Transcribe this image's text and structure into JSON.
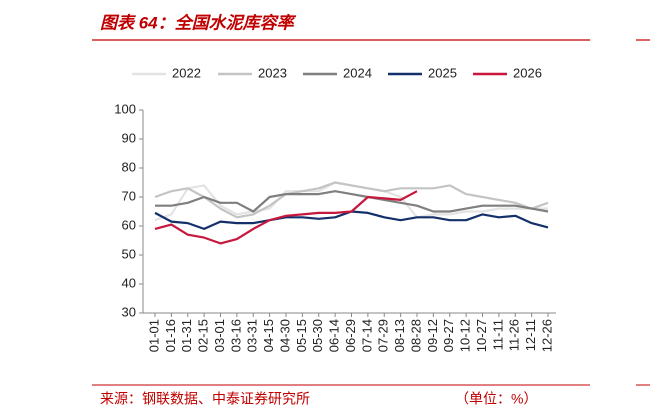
{
  "chart_data": {
    "type": "line",
    "title": "图表 64：全国水泥库容率",
    "source": "来源：钢联数据、中泰证券研究所",
    "unit": "（单位：%）",
    "categories": [
      "01-01",
      "01-16",
      "01-31",
      "02-15",
      "03-01",
      "03-16",
      "03-31",
      "04-15",
      "04-30",
      "05-15",
      "05-30",
      "06-14",
      "06-29",
      "07-14",
      "07-29",
      "08-13",
      "08-28",
      "09-12",
      "09-27",
      "10-12",
      "10-27",
      "11-11",
      "11-26",
      "12-11",
      "12-26"
    ],
    "series": [
      {
        "name": "2022",
        "color": "#e3e3e3",
        "values": [
          62,
          64,
          73,
          74,
          67,
          64,
          65,
          66,
          72,
          72,
          72,
          75,
          74,
          73,
          72,
          70,
          63,
          64,
          64,
          65,
          65,
          66,
          66,
          66,
          66
        ]
      },
      {
        "name": "2023",
        "color": "#c4c4c4",
        "values": [
          70,
          72,
          73,
          70,
          66,
          63,
          64,
          67,
          71,
          72,
          73,
          75,
          74,
          73,
          72,
          73,
          73,
          73,
          74,
          71,
          70,
          69,
          68,
          66,
          68
        ]
      },
      {
        "name": "2024",
        "color": "#7f7f7f",
        "values": [
          67,
          67,
          68,
          70,
          68,
          68,
          65,
          70,
          71,
          71,
          71,
          72,
          71,
          70,
          69,
          68,
          67,
          65,
          65,
          66,
          67,
          67,
          67,
          66,
          65
        ]
      },
      {
        "name": "2025",
        "color": "#14306b",
        "values": [
          64.5,
          61.5,
          61,
          59,
          61.5,
          61,
          61,
          62,
          63,
          63,
          62.5,
          63,
          65,
          64.5,
          63,
          62,
          63,
          63,
          62,
          62,
          64,
          63,
          63.5,
          61,
          59.5
        ]
      },
      {
        "name": "2026",
        "color": "#c8173c",
        "values": [
          59,
          60.5,
          57,
          56,
          54,
          55.5,
          59,
          62,
          63.5,
          64,
          64.5,
          64.5,
          65,
          70,
          69.5,
          69,
          72,
          null,
          null,
          null,
          null,
          null,
          null,
          null,
          null
        ]
      }
    ],
    "ylim": [
      30,
      100
    ],
    "yticks": [
      30,
      40,
      50,
      60,
      70,
      80,
      90,
      100
    ],
    "legend": "top"
  }
}
